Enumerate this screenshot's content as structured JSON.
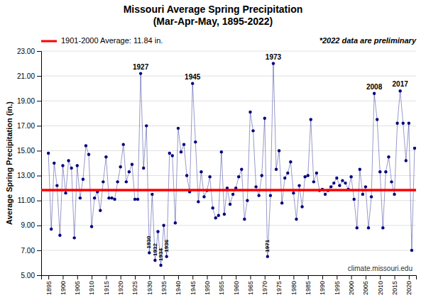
{
  "chart_data": {
    "type": "line",
    "title": "Missouri Average Spring Precipitation\n(Mar-Apr-May, 1895-2022)",
    "y_label": "Average Spring Precipitation (in.)",
    "note": "*2022 data are preliminary",
    "credit": "climate.missouri.edu",
    "color": "#000080",
    "marker": "circle",
    "grid": true,
    "legend": "upper left",
    "xlim": [
      1892.5,
      2022.5
    ],
    "xticks": [
      1895,
      1900,
      1905,
      1910,
      1915,
      1920,
      1925,
      1930,
      1935,
      1940,
      1945,
      1950,
      1955,
      1960,
      1965,
      1970,
      1975,
      1980,
      1985,
      1990,
      1995,
      2000,
      2005,
      2010,
      2015,
      2020
    ],
    "ylim": [
      5.0,
      23.0
    ],
    "yticks": [
      {
        "value": 5.0,
        "label": "5.00"
      },
      {
        "value": 7.0,
        "label": "7.00"
      },
      {
        "value": 9.0,
        "label": "9.00"
      },
      {
        "value": 11.0,
        "label": "11.00"
      },
      {
        "value": 13.0,
        "label": "13.00"
      },
      {
        "value": 15.0,
        "label": "15.00"
      },
      {
        "value": 17.0,
        "label": "17.00"
      },
      {
        "value": 19.0,
        "label": "19.00"
      },
      {
        "value": 21.0,
        "label": "21.00"
      },
      {
        "value": 23.0,
        "label": "23.00"
      }
    ],
    "reference_lines": [
      {
        "name": "1901-2000 Average: 11.84 in.",
        "value": 11.84,
        "color": "#ff0000"
      }
    ],
    "annotations": [
      {
        "text": "1927",
        "x": 1927,
        "y": 21.2
      },
      {
        "text": "1945",
        "x": 1945,
        "y": 20.4
      },
      {
        "text": "1973",
        "x": 1973,
        "y": 22.0
      },
      {
        "text": "1930",
        "x": 1930,
        "y": 6.8
      },
      {
        "text": "1932",
        "x": 1932,
        "y": 6.2
      },
      {
        "text": "1934",
        "x": 1934,
        "y": 5.8
      },
      {
        "text": "1936",
        "x": 1936,
        "y": 6.5
      },
      {
        "text": "1971",
        "x": 1971,
        "y": 6.5
      },
      {
        "text": "2008",
        "x": 2008,
        "y": 19.6
      },
      {
        "text": "2017",
        "x": 2017,
        "y": 19.8
      }
    ],
    "x": [
      1895,
      1896,
      1897,
      1898,
      1899,
      1900,
      1901,
      1902,
      1903,
      1904,
      1905,
      1906,
      1907,
      1908,
      1909,
      1910,
      1911,
      1912,
      1913,
      1914,
      1915,
      1916,
      1917,
      1918,
      1919,
      1920,
      1921,
      1922,
      1923,
      1924,
      1925,
      1926,
      1927,
      1928,
      1929,
      1930,
      1931,
      1932,
      1933,
      1934,
      1935,
      1936,
      1937,
      1938,
      1939,
      1940,
      1941,
      1942,
      1943,
      1944,
      1945,
      1946,
      1947,
      1948,
      1949,
      1950,
      1951,
      1952,
      1953,
      1954,
      1955,
      1956,
      1957,
      1958,
      1959,
      1960,
      1961,
      1962,
      1963,
      1964,
      1965,
      1966,
      1967,
      1968,
      1969,
      1970,
      1971,
      1972,
      1973,
      1974,
      1975,
      1976,
      1977,
      1978,
      1979,
      1980,
      1981,
      1982,
      1983,
      1984,
      1985,
      1986,
      1987,
      1988,
      1989,
      1990,
      1991,
      1992,
      1993,
      1994,
      1995,
      1996,
      1997,
      1998,
      1999,
      2000,
      2001,
      2002,
      2003,
      2004,
      2005,
      2006,
      2007,
      2008,
      2009,
      2010,
      2011,
      2012,
      2013,
      2014,
      2015,
      2016,
      2017,
      2018,
      2019,
      2020,
      2021,
      2022
    ],
    "values": [
      14.8,
      8.7,
      14.0,
      12.2,
      8.2,
      13.8,
      11.6,
      14.2,
      13.6,
      8.0,
      13.8,
      11.2,
      12.7,
      15.4,
      14.7,
      8.9,
      11.2,
      11.7,
      10.2,
      12.5,
      14.5,
      11.2,
      11.2,
      11.1,
      12.5,
      13.7,
      15.5,
      12.5,
      13.3,
      13.9,
      11.1,
      11.1,
      21.2,
      13.6,
      17.0,
      6.8,
      11.5,
      6.2,
      8.5,
      5.8,
      9.0,
      6.5,
      14.8,
      14.6,
      9.2,
      16.8,
      14.9,
      15.5,
      13.0,
      11.7,
      20.4,
      15.7,
      10.9,
      13.3,
      11.3,
      11.8,
      12.9,
      10.4,
      9.6,
      9.8,
      14.9,
      9.9,
      12.0,
      10.7,
      11.5,
      12.0,
      12.9,
      13.5,
      9.5,
      11.0,
      18.1,
      16.6,
      12.1,
      11.4,
      13.0,
      17.6,
      6.5,
      11.4,
      22.0,
      13.5,
      15.0,
      10.8,
      12.8,
      13.2,
      14.1,
      11.6,
      9.5,
      12.2,
      10.5,
      12.9,
      13.0,
      17.5,
      12.5,
      13.2,
      11.8,
      11.9,
      11.5,
      11.8,
      12.1,
      12.4,
      12.8,
      12.2,
      12.6,
      12.4,
      11.9,
      12.9,
      11.1,
      8.8,
      13.5,
      11.5,
      12.1,
      8.8,
      11.3,
      19.6,
      17.5,
      13.3,
      8.8,
      13.3,
      14.5,
      12.5,
      11.5,
      17.2,
      19.8,
      17.2,
      14.2,
      17.2,
      7.0,
      15.2
    ]
  }
}
